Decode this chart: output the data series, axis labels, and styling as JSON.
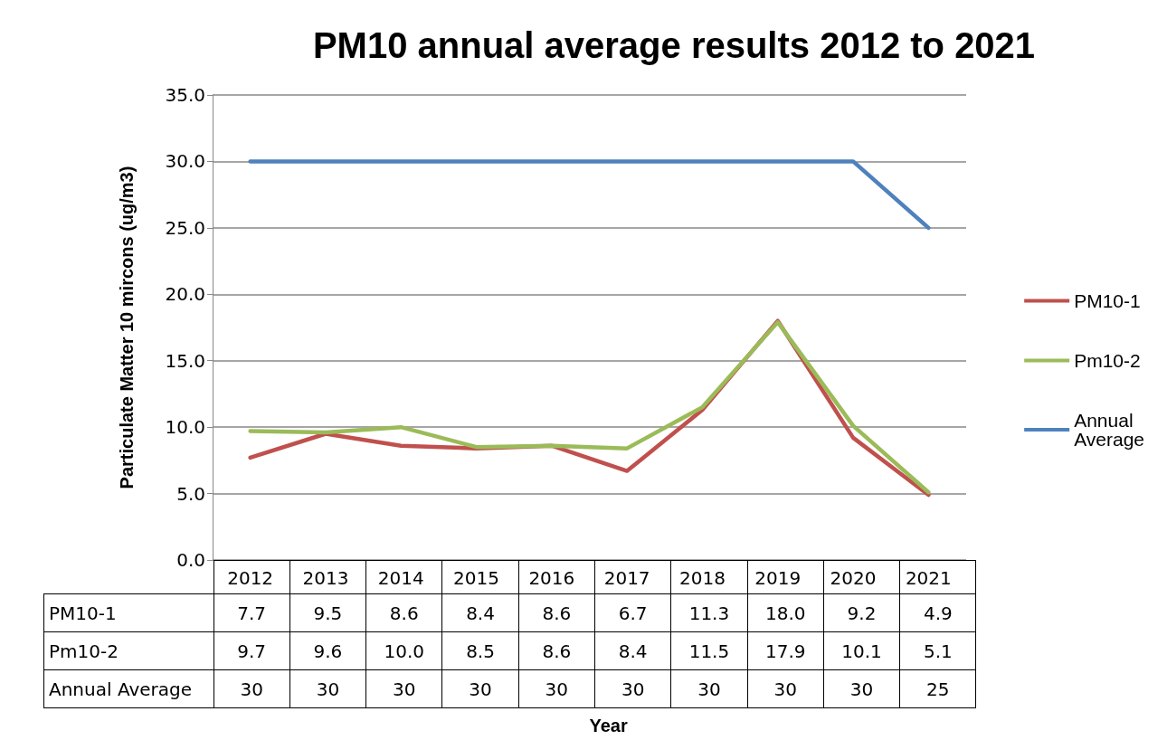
{
  "chart_data": {
    "type": "line",
    "title": "PM10 annual average results 2012 to 2021",
    "annotations": [
      "Year"
    ],
    "ylabel": "Particulate Matter 10 mircons (ug/m3)",
    "categories": [
      "2012",
      "2013",
      "2014",
      "2015",
      "2016",
      "2017",
      "2018",
      "2019",
      "2020",
      "2021"
    ],
    "series": [
      {
        "name": "PM10-1",
        "color": "#c0504d",
        "values": [
          7.7,
          9.5,
          8.6,
          8.4,
          8.6,
          6.7,
          11.3,
          18.0,
          9.2,
          4.9
        ],
        "value_labels": [
          "7.7",
          "9.5",
          "8.6",
          "8.4",
          "8.6",
          "6.7",
          "11.3",
          "18.0",
          "9.2",
          "4.9"
        ]
      },
      {
        "name": "Pm10-2",
        "color": "#9bbb59",
        "values": [
          9.7,
          9.6,
          10.0,
          8.5,
          8.6,
          8.4,
          11.5,
          17.9,
          10.1,
          5.1
        ],
        "value_labels": [
          "9.7",
          "9.6",
          "10.0",
          "8.5",
          "8.6",
          "8.4",
          "11.5",
          "17.9",
          "10.1",
          "5.1"
        ]
      },
      {
        "name": "Annual Average",
        "color": "#4f81bd",
        "values": [
          30,
          30,
          30,
          30,
          30,
          30,
          30,
          30,
          30,
          25
        ],
        "value_labels": [
          "30",
          "30",
          "30",
          "30",
          "30",
          "30",
          "30",
          "30",
          "30",
          "25"
        ]
      }
    ],
    "ylim": [
      0,
      35
    ],
    "yticks": [
      {
        "value": 0,
        "label": "0.0"
      },
      {
        "value": 5,
        "label": "5.0"
      },
      {
        "value": 10,
        "label": "10.0"
      },
      {
        "value": 15,
        "label": "15.0"
      },
      {
        "value": 20,
        "label": "20.0"
      },
      {
        "value": 25,
        "label": "25.0"
      },
      {
        "value": 30,
        "label": "30.0"
      },
      {
        "value": 35,
        "label": "35.0"
      }
    ],
    "grid": "y",
    "legend": "right",
    "marker": "none",
    "line_style": "solid"
  }
}
